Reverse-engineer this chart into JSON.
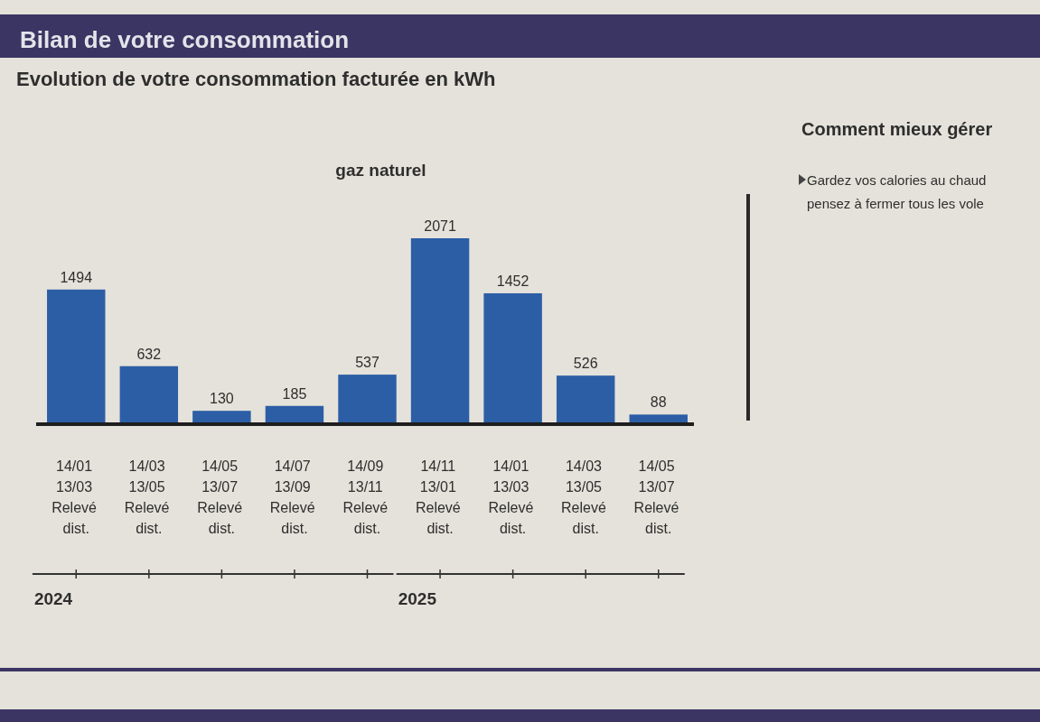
{
  "chart_data": {
    "type": "bar",
    "title": "Evolution de votre consommation facturée en kWh",
    "subtitle": "gaz naturel",
    "categories": [
      "14/01 13/03 Relevé dist.",
      "14/03 13/05 Relevé dist.",
      "14/05 13/07 Relevé dist.",
      "14/07 13/09 Relevé dist.",
      "14/09 13/11 Relevé dist.",
      "14/11 13/01 Relevé dist.",
      "14/01 13/03 Relevé dist.",
      "14/03 13/05 Relevé dist.",
      "14/05 13/07 Relevé dist."
    ],
    "values": [
      1494,
      632,
      130,
      185,
      537,
      2071,
      1452,
      526,
      88
    ],
    "color": "#2c5ea6",
    "data_labels": true,
    "annotations": [
      "Bilan de votre consommation",
      "Comment mieux gérer",
      "Gardez vos calories au chaud",
      "pensez à fermer tous les vole",
      "2024",
      "2025"
    ]
  }
}
